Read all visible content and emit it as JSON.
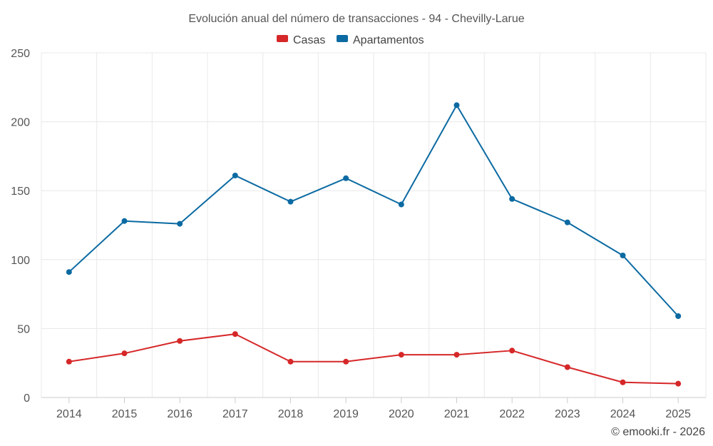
{
  "chart_data": {
    "type": "line",
    "title": "Evolución anual del número de transacciones - 94 - Chevilly-Larue",
    "categories": [
      "2014",
      "2015",
      "2016",
      "2017",
      "2018",
      "2019",
      "2020",
      "2021",
      "2022",
      "2023",
      "2024",
      "2025"
    ],
    "series": [
      {
        "name": "Casas",
        "color": "#d62728",
        "values": [
          26,
          32,
          41,
          46,
          26,
          26,
          31,
          31,
          34,
          22,
          11,
          10
        ]
      },
      {
        "name": "Apartamentos",
        "color": "#0b6aa2",
        "values": [
          91,
          128,
          126,
          161,
          142,
          159,
          140,
          212,
          144,
          127,
          103,
          59
        ]
      }
    ],
    "yticks": [
      "0",
      "50",
      "100",
      "150",
      "200",
      "250"
    ],
    "ylim": [
      0,
      250
    ],
    "grid": true,
    "legend": "top-center",
    "xlabel": "",
    "ylabel": ""
  },
  "credit": "© emooki.fr - 2026"
}
